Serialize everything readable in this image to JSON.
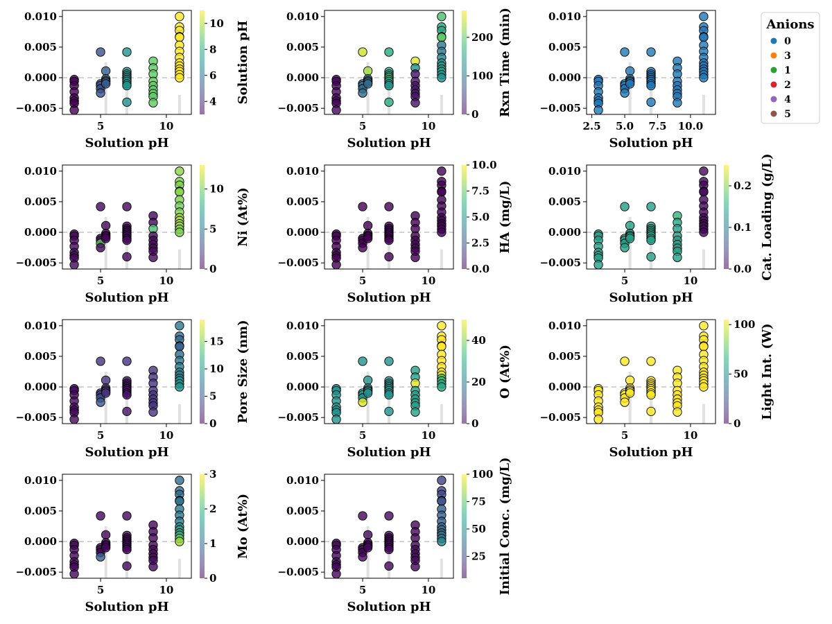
{
  "chart_data": {
    "type": "scatter",
    "xlabel": "Solution pH",
    "ylim": [
      -0.006,
      0.011
    ],
    "yticks": [
      -0.005,
      0.0,
      0.005,
      0.01
    ],
    "ytick_labels": [
      "−0.005",
      "0.000",
      "0.005",
      "0.010"
    ],
    "baseline": 0.0,
    "colormap": "viridis",
    "point_edge_color": "#000000",
    "panels": [
      {
        "colorbar_label": "Solution pH",
        "cmin": 3,
        "cmax": 11,
        "cbticks": [
          4,
          6,
          8,
          10
        ],
        "cbtick_labels": [
          "4",
          "6",
          "8",
          "10"
        ],
        "xlim": [
          2.1,
          11.9
        ],
        "xticks": [
          5,
          10
        ],
        "xtick_labels": [
          "5",
          "10"
        ],
        "color_by": "x"
      },
      {
        "colorbar_label": "Rxn Time (min)",
        "cmin": 0,
        "cmax": 270,
        "cbticks": [
          0,
          100,
          200
        ],
        "cbtick_labels": [
          "0",
          "100",
          "200"
        ],
        "xlim": [
          2.1,
          11.9
        ],
        "xticks": [
          5,
          10
        ],
        "xtick_labels": [
          "5",
          "10"
        ],
        "color_by": "mixed"
      },
      {
        "colorbar_label": null,
        "legend": {
          "title": "Anions",
          "entries": [
            {
              "label": "0",
              "color": "#1f77b4"
            },
            {
              "label": "3",
              "color": "#ff7f0e"
            },
            {
              "label": "1",
              "color": "#2ca02c"
            },
            {
              "label": "2",
              "color": "#d62728"
            },
            {
              "label": "4",
              "color": "#9467bd"
            },
            {
              "label": "5",
              "color": "#8c564b"
            }
          ]
        },
        "xlim": [
          2.1,
          11.9
        ],
        "xticks": [
          2.5,
          5.0,
          7.5,
          10.0
        ],
        "xtick_labels": [
          "2.5",
          "5.0",
          "7.5",
          "10.0"
        ],
        "color_by": "fixed",
        "fixed_t": 0.28,
        "fixed_hex": "#1f77b4"
      },
      {
        "colorbar_label": "Ni (At%)",
        "cmin": 0,
        "cmax": 13,
        "cbticks": [
          0,
          5,
          10
        ],
        "cbtick_labels": [
          "0",
          "5",
          "10"
        ],
        "xlim": [
          2.1,
          11.9
        ],
        "xticks": [
          5,
          10
        ],
        "xtick_labels": [
          "5",
          "10"
        ],
        "color_by": "mixed"
      },
      {
        "colorbar_label": "HA (mg/L)",
        "cmin": 0,
        "cmax": 10,
        "cbticks": [
          0,
          2.5,
          5,
          7.5,
          10
        ],
        "cbtick_labels": [
          "0.0",
          "2.5",
          "5.0",
          "7.5",
          "10.0"
        ],
        "xlim": [
          2.1,
          11.9
        ],
        "xticks": [
          5,
          10
        ],
        "xtick_labels": [
          "5",
          "10"
        ],
        "color_by": "fixed",
        "fixed_t": 0.0
      },
      {
        "colorbar_label": "Cat. Loading (g/L)",
        "cmin": 0,
        "cmax": 0.25,
        "cbticks": [
          0,
          0.1,
          0.2
        ],
        "cbtick_labels": [
          "0.0",
          "0.1",
          "0.2"
        ],
        "xlim": [
          2.1,
          11.9
        ],
        "xticks": [
          5,
          10
        ],
        "xtick_labels": [
          "5",
          "10"
        ],
        "color_by": "mixed"
      },
      {
        "colorbar_label": "Pore Size (nm)",
        "cmin": 0,
        "cmax": 19,
        "cbticks": [
          0,
          5,
          10,
          15
        ],
        "cbtick_labels": [
          "0",
          "5",
          "10",
          "15"
        ],
        "xlim": [
          2.1,
          11.9
        ],
        "xticks": [
          5,
          10
        ],
        "xtick_labels": [
          "5",
          "10"
        ],
        "color_by": "mixed"
      },
      {
        "colorbar_label": "O (At%)",
        "cmin": 0,
        "cmax": 50,
        "cbticks": [
          0,
          20,
          40
        ],
        "cbtick_labels": [
          "0",
          "20",
          "40"
        ],
        "xlim": [
          2.1,
          11.9
        ],
        "xticks": [
          5,
          10
        ],
        "xtick_labels": [
          "5",
          "10"
        ],
        "color_by": "mixed"
      },
      {
        "colorbar_label": "Light Int. (W)",
        "cmin": 0,
        "cmax": 105,
        "cbticks": [
          0,
          50,
          100
        ],
        "cbtick_labels": [
          "0",
          "50",
          "100"
        ],
        "xlim": [
          2.1,
          11.9
        ],
        "xticks": [
          5,
          10
        ],
        "xtick_labels": [
          "5",
          "10"
        ],
        "color_by": "fixed",
        "fixed_t": 1.0
      },
      {
        "colorbar_label": "Mo (At%)",
        "cmin": 0,
        "cmax": 3,
        "cbticks": [
          0,
          1,
          2,
          3
        ],
        "cbtick_labels": [
          "0",
          "1",
          "2",
          "3"
        ],
        "xlim": [
          2.1,
          11.9
        ],
        "xticks": [
          5,
          10
        ],
        "xtick_labels": [
          "5",
          "10"
        ],
        "color_by": "mixed"
      },
      {
        "colorbar_label": "Initial Conc. (mg/L)",
        "cmin": 5,
        "cmax": 100,
        "cbticks": [
          25,
          50,
          75,
          100
        ],
        "cbtick_labels": [
          "25",
          "50",
          "75",
          "100"
        ],
        "xlim": [
          2.1,
          11.9
        ],
        "xticks": [
          5,
          10
        ],
        "xtick_labels": [
          "5",
          "10"
        ],
        "color_by": "mixed"
      }
    ],
    "points": [
      {
        "x": 3,
        "ys": [
          -0.0003,
          -0.0006,
          -0.0013,
          -0.0023,
          -0.0033,
          -0.0038,
          -0.0042,
          -0.0053
        ]
      },
      {
        "x": 5,
        "ys": [
          0.0042,
          -0.001,
          -0.0013,
          -0.0018,
          -0.0025
        ]
      },
      {
        "x": 5.4,
        "ys": [
          0.0011,
          -0.0002,
          -0.0005,
          -0.0007,
          -0.001
        ]
      },
      {
        "x": 7,
        "ys": [
          0.0042,
          0.001,
          0.0006,
          0.0003,
          0.0,
          -0.0003,
          -0.0006,
          -0.001,
          -0.0013,
          -0.004
        ]
      },
      {
        "x": 9,
        "ys": [
          0.0027,
          0.0016,
          0.0006,
          -0.0006,
          -0.0013,
          -0.002,
          -0.0026,
          -0.0031,
          -0.0041
        ]
      },
      {
        "x": 11,
        "ys": [
          0.01,
          0.0083,
          0.0077,
          0.0067,
          0.0066,
          0.0053,
          0.0043,
          0.0033,
          0.0024,
          0.0019,
          0.0014,
          0.001,
          0.0005,
          0.0
        ]
      }
    ],
    "point_colors": [
      [
        null,
        null,
        null,
        null,
        null,
        null,
        null,
        null,
        null,
        null,
        null
      ],
      [
        [
          0.02,
          0.02,
          0.02,
          0.02,
          0.02,
          0.02,
          0.02,
          0.02
        ],
        [
          0.92,
          0.35,
          0.35,
          0.35,
          0.35
        ],
        [
          0.85,
          0.35,
          0.35,
          0.35,
          0.35
        ],
        [
          0.6,
          0.6,
          0.6,
          0.5,
          0.75,
          0.6,
          0.6,
          0.5,
          0.5,
          0.6
        ],
        [
          0.95,
          0.5,
          0.05,
          0.05,
          0.05,
          0.05,
          0.05,
          0.05,
          0.05
        ],
        [
          0.7,
          0.55,
          0.6,
          0.7,
          0.75,
          0.4,
          0.4,
          0.45,
          0.5,
          0.5,
          0.55,
          0.55,
          0.5,
          0.5
        ]
      ],
      null,
      [
        [
          0.02,
          0.02,
          0.02,
          0.02,
          0.02,
          0.02,
          0.02,
          0.02
        ],
        [
          0.02,
          0.02,
          0.02,
          0.75,
          0.02
        ],
        [
          0.02,
          0.02,
          0.02,
          0.02,
          0.02
        ],
        [
          0.02,
          0.02,
          0.02,
          0.02,
          0.02,
          0.02,
          0.02,
          0.02,
          0.02,
          0.02
        ],
        [
          0.02,
          0.02,
          0.7,
          0.02,
          0.02,
          0.02,
          0.02,
          0.02,
          0.02
        ],
        [
          0.82,
          0.8,
          0.8,
          0.78,
          0.82,
          0.8,
          0.78,
          0.8,
          0.85,
          0.88,
          0.85,
          0.85,
          0.8,
          0.8
        ]
      ],
      null,
      [
        [
          0.55,
          0.55,
          0.55,
          0.55,
          0.55,
          0.55,
          0.55,
          0.55
        ],
        [
          0.55,
          0.55,
          0.55,
          0.55,
          0.55
        ],
        [
          0.55,
          0.55,
          0.55,
          0.55,
          0.55
        ],
        [
          0.55,
          0.55,
          0.55,
          0.55,
          0.55,
          0.55,
          0.55,
          0.55,
          0.55,
          0.55
        ],
        [
          0.65,
          0.6,
          0.55,
          0.55,
          0.55,
          0.55,
          0.55,
          0.55,
          0.55
        ],
        [
          0.02,
          0.02,
          0.02,
          0.02,
          0.02,
          0.02,
          0.02,
          0.02,
          0.02,
          0.02,
          0.02,
          0.02,
          0.02,
          0.02
        ]
      ],
      [
        [
          0.02,
          0.02,
          0.02,
          0.02,
          0.02,
          0.02,
          0.02,
          0.02
        ],
        [
          0.15,
          0.15,
          0.15,
          0.25,
          0.28
        ],
        [
          0.15,
          0.15,
          0.15,
          0.15,
          0.15
        ],
        [
          0.15,
          0.05,
          0.05,
          0.05,
          0.05,
          0.05,
          0.05,
          0.05,
          0.05,
          0.05
        ],
        [
          0.15,
          0.15,
          0.15,
          0.15,
          0.15,
          0.15,
          0.15,
          0.15,
          0.15
        ],
        [
          0.4,
          0.35,
          0.35,
          0.3,
          0.3,
          0.35,
          0.4,
          0.42,
          0.42,
          0.42,
          0.45,
          0.5,
          0.5,
          0.5
        ]
      ],
      [
        [
          0.5,
          0.5,
          0.5,
          0.5,
          0.5,
          0.5,
          0.5,
          0.5
        ],
        [
          0.5,
          0.5,
          0.5,
          0.5,
          0.95
        ],
        [
          0.5,
          0.5,
          0.5,
          0.5,
          0.5
        ],
        [
          0.5,
          0.5,
          0.5,
          0.5,
          0.5,
          0.5,
          0.5,
          0.5,
          0.5,
          0.5
        ],
        [
          0.55,
          0.55,
          0.95,
          0.55,
          0.55,
          0.55,
          0.55,
          0.55,
          0.55
        ],
        [
          1,
          1,
          1,
          1,
          1,
          1,
          1,
          1,
          1,
          0.95,
          0.7,
          0.65,
          0.6,
          0.6
        ]
      ],
      null,
      [
        [
          0.02,
          0.02,
          0.02,
          0.02,
          0.02,
          0.02,
          0.02,
          0.02
        ],
        [
          0.02,
          0.02,
          0.02,
          0.02,
          0.3
        ],
        [
          0.02,
          0.02,
          0.02,
          0.02,
          0.02
        ],
        [
          0.02,
          0.02,
          0.02,
          0.02,
          0.02,
          0.02,
          0.02,
          0.02,
          0.02,
          0.02
        ],
        [
          0.02,
          0.02,
          0.02,
          0.02,
          0.02,
          0.02,
          0.02,
          0.02,
          0.02
        ],
        [
          0.35,
          0.35,
          0.35,
          0.35,
          0.38,
          0.4,
          0.4,
          0.4,
          0.5,
          0.55,
          0.6,
          0.65,
          0.75,
          0.85
        ]
      ],
      [
        [
          0.02,
          0.02,
          0.02,
          0.02,
          0.02,
          0.02,
          0.02,
          0.02
        ],
        [
          0.02,
          0.02,
          0.02,
          0.02,
          0.02
        ],
        [
          0.02,
          0.02,
          0.02,
          0.02,
          0.02
        ],
        [
          0.02,
          0.02,
          0.02,
          0.02,
          0.02,
          0.02,
          0.02,
          0.02,
          0.02,
          0.02
        ],
        [
          0.02,
          0.02,
          0.02,
          0.02,
          0.02,
          0.02,
          0.02,
          0.02,
          0.02
        ],
        [
          0.2,
          0.2,
          0.22,
          0.25,
          0.25,
          0.3,
          0.3,
          0.3,
          0.32,
          0.35,
          0.35,
          0.38,
          0.4,
          0.45
        ]
      ]
    ]
  }
}
